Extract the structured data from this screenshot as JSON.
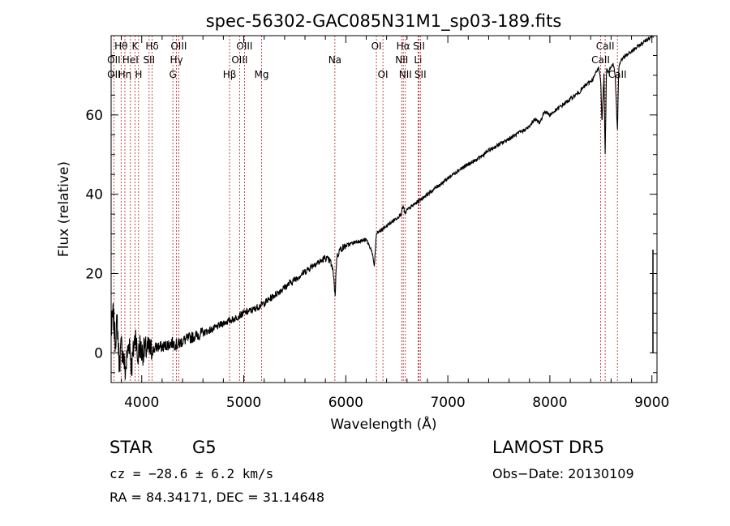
{
  "chart_data": {
    "type": "line",
    "title": "spec-56302-GAC085N31M1_sp03-189.fits",
    "xlabel": "Wavelength (Å)",
    "ylabel": "Flux (relative)",
    "xlim": [
      3700,
      9050
    ],
    "ylim": [
      -7.5,
      80
    ],
    "x_ticks": [
      4000,
      5000,
      6000,
      7000,
      8000,
      9000
    ],
    "y_ticks": [
      0,
      20,
      40,
      60
    ],
    "grid": false,
    "series": [
      {
        "x": [
          3700,
          3720,
          3740,
          3760,
          3780,
          3800,
          3820,
          3840,
          3860,
          3880,
          3900,
          3920,
          3940,
          3960,
          3980,
          4000,
          4050,
          4100,
          4150,
          4200,
          4250,
          4300,
          4350,
          4400,
          4450,
          4500,
          4600,
          4700,
          4800,
          4900,
          5000,
          5100,
          5200,
          5300,
          5400,
          5500,
          5600,
          5700,
          5750,
          5800,
          5850,
          5880,
          5895,
          5910,
          5940,
          6000,
          6100,
          6200,
          6250,
          6280,
          6300,
          6350,
          6400,
          6450,
          6500,
          6540,
          6563,
          6580,
          6600,
          6650,
          6700,
          6800,
          6900,
          7000,
          7100,
          7200,
          7300,
          7400,
          7500,
          7600,
          7700,
          7800,
          7850,
          7900,
          7950,
          8000,
          8050,
          8100,
          8150,
          8200,
          8250,
          8300,
          8350,
          8400,
          8420,
          8440,
          8460,
          8480,
          8498,
          8510,
          8530,
          8542,
          8555,
          8570,
          8600,
          8620,
          8640,
          8662,
          8675,
          8700,
          8750,
          8800,
          8850,
          8900,
          8950,
          9000,
          9020
        ],
        "y": [
          5,
          10,
          3,
          8,
          -3,
          2,
          -1,
          -5,
          0,
          3,
          -4,
          1,
          5,
          -2,
          2,
          0,
          1,
          0.5,
          1.5,
          1.5,
          2,
          2.5,
          2,
          3,
          3.5,
          4,
          5,
          6,
          7.5,
          8.5,
          10,
          11,
          12.5,
          14.5,
          16.5,
          18.5,
          20.5,
          22.5,
          23,
          24,
          23,
          20,
          14,
          24,
          26,
          27,
          28,
          28.5,
          26,
          22,
          30,
          31,
          32,
          33,
          34,
          35,
          37,
          35,
          36,
          37,
          38,
          40,
          42,
          44,
          46,
          47.5,
          49,
          51,
          52.5,
          54,
          55.5,
          57,
          59,
          58,
          61,
          60,
          61,
          62,
          63,
          64,
          65,
          66,
          67.5,
          68.5,
          69,
          70,
          71,
          72,
          69,
          58,
          70,
          50,
          72,
          71,
          72,
          73,
          70,
          56,
          72,
          74,
          75,
          76,
          77,
          78,
          79,
          80,
          80
        ]
      }
    ],
    "spectral_lines": [
      {
        "label": "Hθ",
        "x": 3798,
        "row": 0
      },
      {
        "label": "OII",
        "x": 3727,
        "row": 1
      },
      {
        "label": "OII",
        "x": 3727,
        "row": 2
      },
      {
        "label": "Hη",
        "x": 3835,
        "row": 2
      },
      {
        "label": "HeI",
        "x": 3889,
        "row": 1
      },
      {
        "label": "K",
        "x": 3934,
        "row": 0
      },
      {
        "label": "H",
        "x": 3969,
        "row": 2
      },
      {
        "label": "Hδ",
        "x": 4102,
        "row": 0
      },
      {
        "label": "SII",
        "x": 4072,
        "row": 1
      },
      {
        "label": "OIII",
        "x": 4363,
        "row": 0
      },
      {
        "label": "Hγ",
        "x": 4340,
        "row": 1
      },
      {
        "label": "G",
        "x": 4305,
        "row": 2
      },
      {
        "label": "Hβ",
        "x": 4861,
        "row": 2
      },
      {
        "label": "OIII",
        "x": 5007,
        "row": 0
      },
      {
        "label": "OIII",
        "x": 4959,
        "row": 1
      },
      {
        "label": "Mg",
        "x": 5175,
        "row": 2
      },
      {
        "label": "Na",
        "x": 5893,
        "row": 1
      },
      {
        "label": "OI",
        "x": 6300,
        "row": 0
      },
      {
        "label": "OI",
        "x": 6364,
        "row": 2
      },
      {
        "label": "Hα",
        "x": 6563,
        "row": 0
      },
      {
        "label": "NII",
        "x": 6548,
        "row": 1
      },
      {
        "label": "NII",
        "x": 6584,
        "row": 2
      },
      {
        "label": "SII",
        "x": 6717,
        "row": 0
      },
      {
        "label": "Li",
        "x": 6708,
        "row": 1
      },
      {
        "label": "SII",
        "x": 6731,
        "row": 2
      },
      {
        "label": "CaII",
        "x": 8542,
        "row": 0
      },
      {
        "label": "CaII",
        "x": 8498,
        "row": 1
      },
      {
        "label": "CaII",
        "x": 8662,
        "row": 2
      }
    ]
  },
  "info": {
    "object_class": "STAR",
    "subclass": "G5",
    "survey": "LAMOST DR5",
    "cz_text": "cz = −28.6 ± 6.2 km/s",
    "obs_date": "Obs−Date: 20130109",
    "coords": "RA =  84.34171, DEC =  31.14648"
  }
}
